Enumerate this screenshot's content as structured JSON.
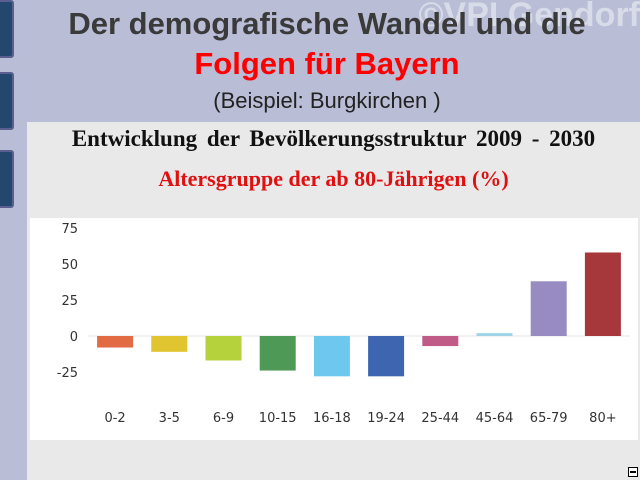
{
  "slide": {
    "title_line1": "Der demografische Wandel und die",
    "title_line2": "Folgen für Bayern",
    "title_line3": "(Beispiel: Burgkirchen )",
    "watermark": "©VPI Gendorf"
  },
  "colors": {
    "slide_background": "#b9bdd6",
    "title_highlight": "#ff0000",
    "subheading": "#e01010"
  },
  "chart_data": {
    "type": "bar",
    "title": "Entwicklung der Bevölkerungsstruktur 2009 - 2030",
    "subtitle": "Altersgruppe der ab 80-Jährigen (%)",
    "categories": [
      "0-2",
      "3-5",
      "6-9",
      "10-15",
      "16-18",
      "19-24",
      "25-44",
      "45-64",
      "65-79",
      "80+"
    ],
    "values": [
      -8,
      -11,
      -17,
      -24,
      -28,
      -28,
      -7,
      2,
      38,
      58
    ],
    "colors": [
      "#e36b43",
      "#e0c531",
      "#b5d13c",
      "#4f9957",
      "#6ec8ee",
      "#3d65b0",
      "#c05a86",
      "#9ed4e6",
      "#978bc1",
      "#a6373b"
    ],
    "y_ticks": [
      75,
      50,
      25,
      0,
      -25
    ],
    "ylim": [
      -35,
      75
    ],
    "xlabel": "",
    "ylabel": "",
    "grid": false,
    "legend": "none"
  },
  "icons": {
    "corner": "slide-menu-icon"
  }
}
